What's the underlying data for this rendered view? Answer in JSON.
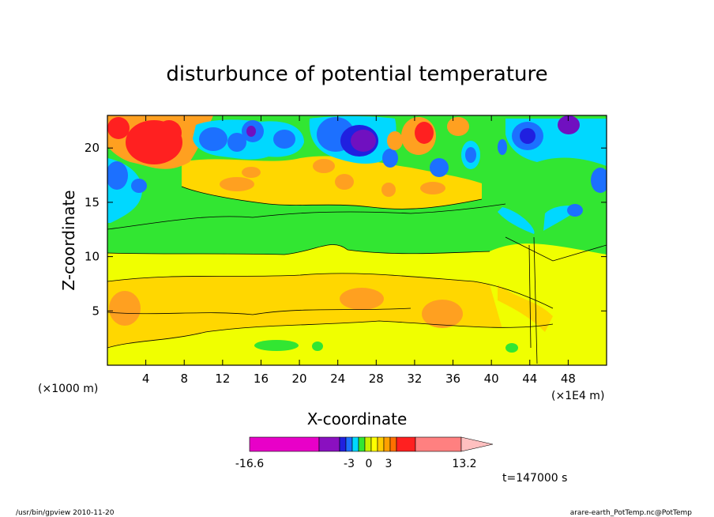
{
  "chart_data": {
    "type": "heatmap",
    "title": "disturbunce of potential temperature",
    "xlabel": "X-coordinate",
    "ylabel": "Z-coordinate",
    "x_unit_left": "(×1000 m)",
    "x_unit_right": "(×1E4 m)",
    "xlim": [
      0,
      52
    ],
    "ylim": [
      0,
      23
    ],
    "x_ticks": [
      4,
      8,
      12,
      16,
      20,
      24,
      28,
      32,
      36,
      40,
      44,
      48
    ],
    "y_ticks": [
      5,
      10,
      15,
      20
    ],
    "colorbar": {
      "tick_labels": [
        "-16.6",
        "-3",
        "0",
        "3",
        "13.2"
      ],
      "colors": [
        "#e800c8",
        "#8a10c0",
        "#2020e0",
        "#1c70ff",
        "#00d8ff",
        "#32e632",
        "#c8f000",
        "#ffff00",
        "#ffcc00",
        "#ffa000",
        "#ff7000",
        "#ff2020",
        "#ff8080",
        "#ffc0c0"
      ]
    },
    "fill_colors": {
      "green": "#32e632",
      "light_yellow": "#f0ff00",
      "yellow": "#ffd700",
      "orange": "#ffa020",
      "red": "#ff2020",
      "light_blue": "#00d8ff",
      "blue": "#1c70ff",
      "dark_blue": "#2020e0",
      "purple": "#7010c0"
    }
  },
  "annotations": {
    "time": "t=147000 s",
    "footer_left": "/usr/bin/gpview   2010-11-20",
    "footer_right": "arare-earth_PotTemp.nc@PotTemp"
  }
}
